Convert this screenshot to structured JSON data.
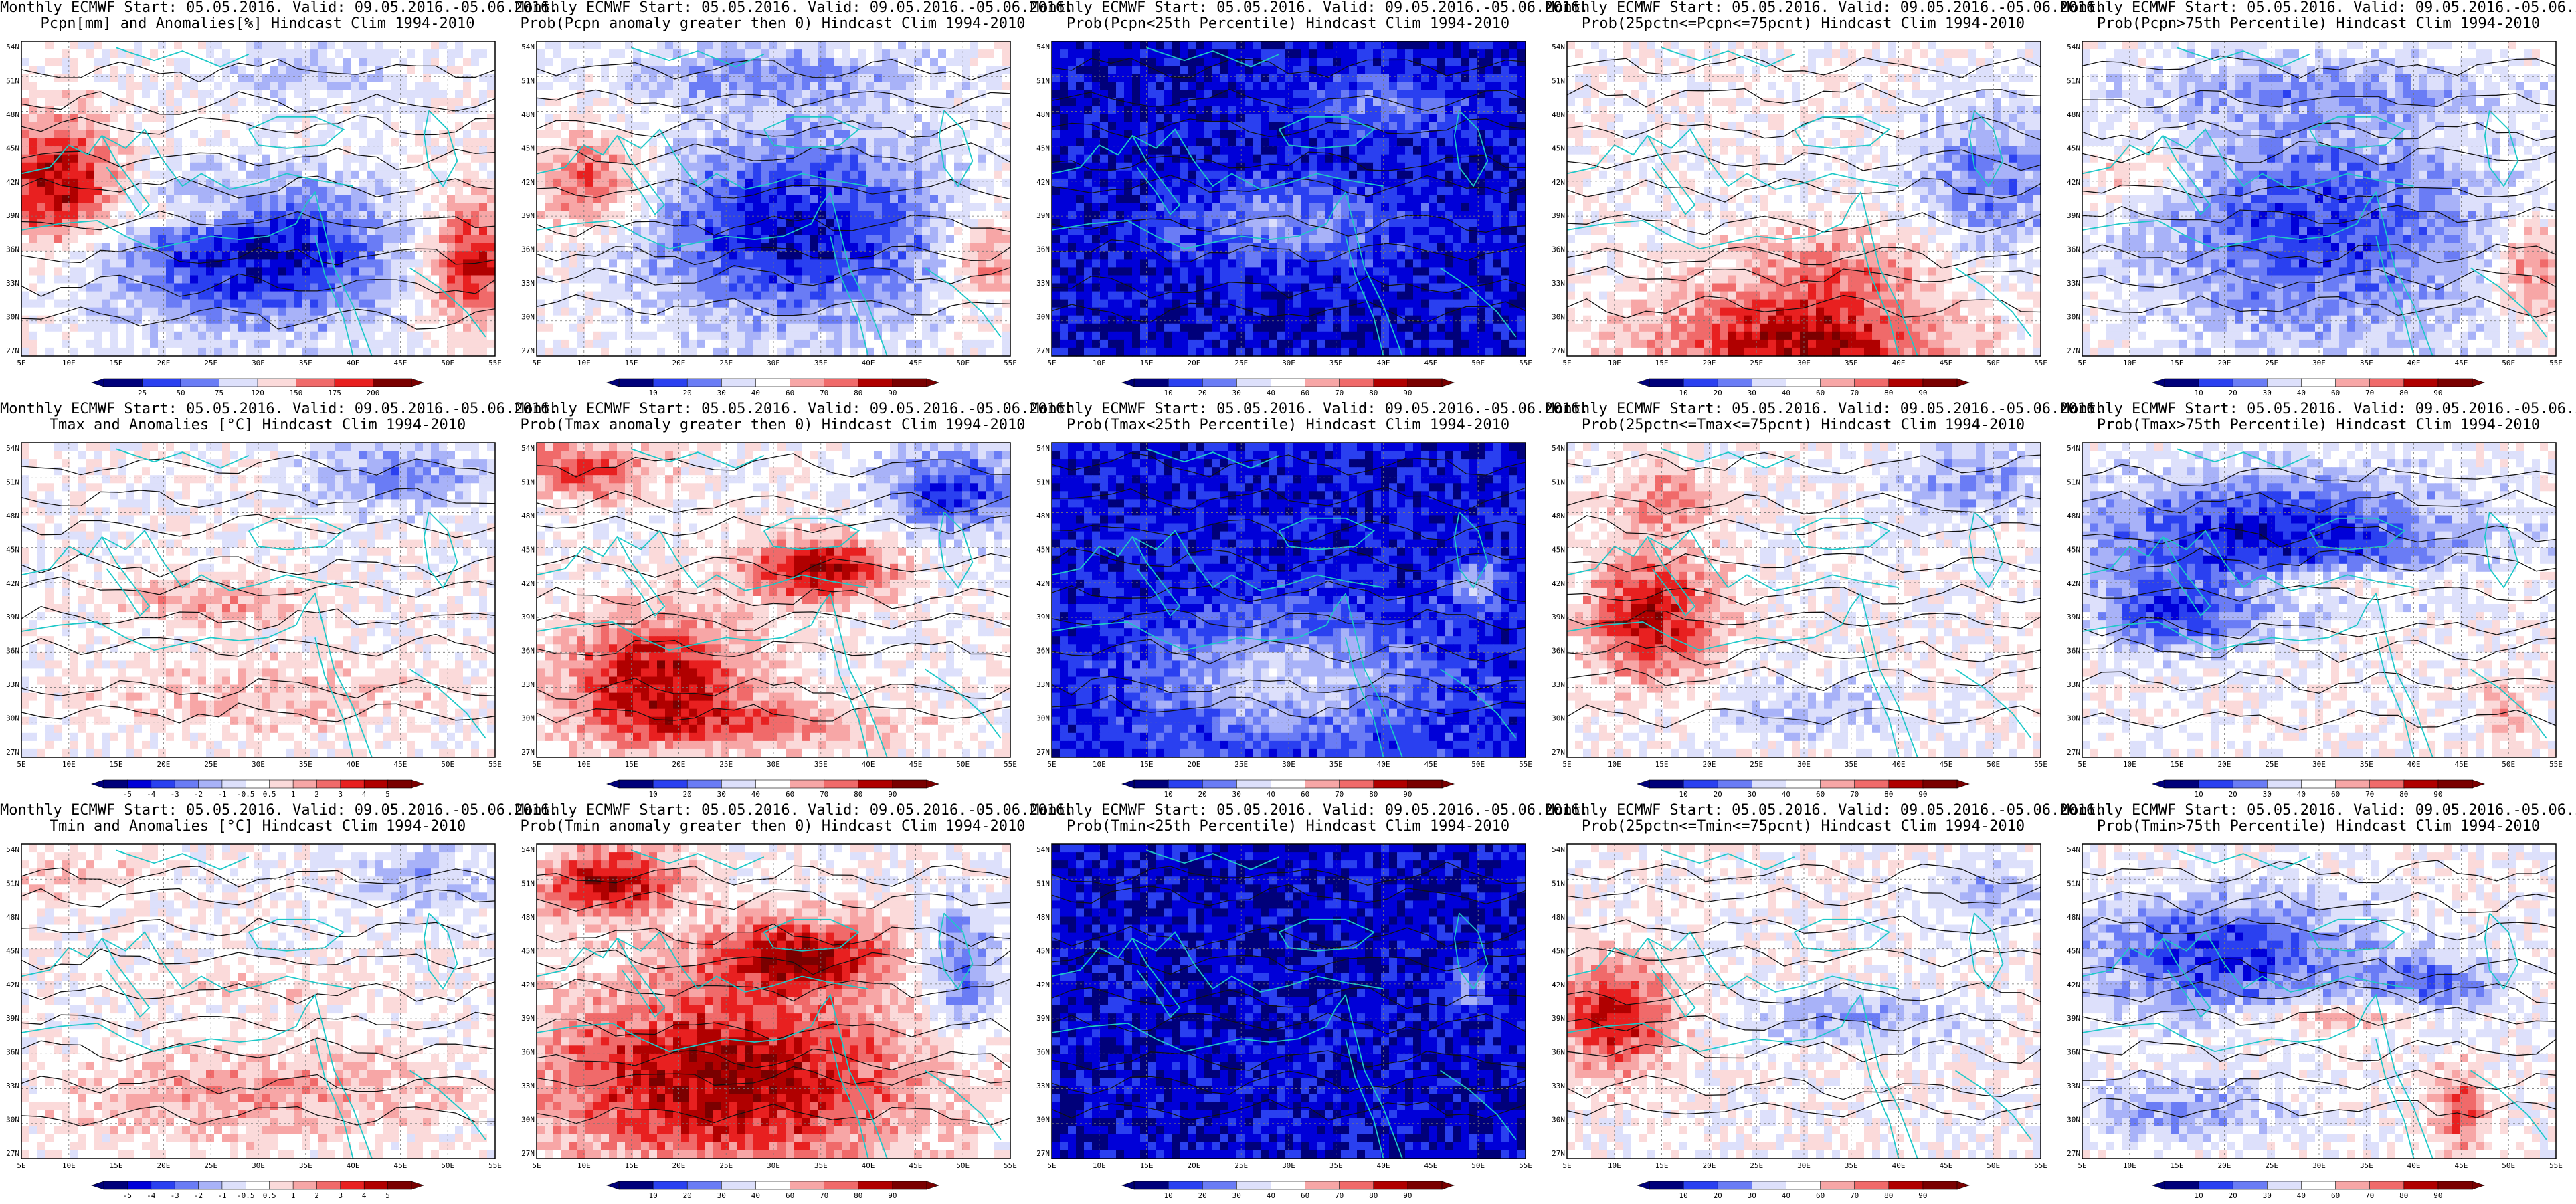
{
  "header": {
    "line1": "Monthly ECMWF Start: 05.05.2016. Valid: 09.05.2016.-05.06.2016."
  },
  "map": {
    "lat_labels": [
      "54N",
      "51N",
      "48N",
      "45N",
      "42N",
      "39N",
      "36N",
      "33N",
      "30N",
      "27N"
    ],
    "lon_labels": [
      "5E",
      "10E",
      "15E",
      "20E",
      "25E",
      "30E",
      "35E",
      "40E",
      "45E",
      "50E",
      "55E"
    ]
  },
  "colorbars": {
    "precip_anom": [
      "25",
      "50",
      "75",
      "120",
      "150",
      "175",
      "200"
    ],
    "prob": [
      "10",
      "20",
      "30",
      "40",
      "60",
      "70",
      "80",
      "90"
    ],
    "temp_anom": [
      "-5",
      "-4",
      "-3",
      "-2",
      "-1",
      "-0.5",
      "0.5",
      "1",
      "2",
      "3",
      "4",
      "5"
    ]
  },
  "palettes": {
    "diverging": [
      "#00007a",
      "#0000d8",
      "#2a40f0",
      "#6a7cf5",
      "#a8b2f8",
      "#dde0fb",
      "#ffffff",
      "#fbdada",
      "#f7a6a6",
      "#f06a6a",
      "#e82020",
      "#b00000",
      "#7a0000"
    ]
  },
  "panels": [
    {
      "title": "Pcpn[mm] and Anomalies[%] Hindcast Clim 1994-2010",
      "colorbar": "precip_anom",
      "pattern": "pcpn_anom"
    },
    {
      "title": "Prob(Pcpn anomaly greater then 0) Hindcast Clim 1994-2010",
      "colorbar": "prob",
      "pattern": "pcpn_prob_pos"
    },
    {
      "title": "Prob(Pcpn<25th Percentile) Hindcast Clim 1994-2010",
      "colorbar": "prob",
      "pattern": "pcpn_low"
    },
    {
      "title": "Prob(25pctn<=Pcpn<=75pcnt) Hindcast Clim 1994-2010",
      "colorbar": "prob",
      "pattern": "pcpn_mid"
    },
    {
      "title": "Prob(Pcpn>75th Percentile) Hindcast Clim 1994-2010",
      "colorbar": "prob",
      "pattern": "pcpn_high"
    },
    {
      "title": "Tmax and Anomalies [°C] Hindcast Clim 1994-2010",
      "colorbar": "temp_anom",
      "pattern": "tmax_anom"
    },
    {
      "title": "Prob(Tmax anomaly greater then 0) Hindcast Clim 1994-2010",
      "colorbar": "prob",
      "pattern": "tmax_prob_pos"
    },
    {
      "title": "Prob(Tmax<25th Percentile) Hindcast Clim 1994-2010",
      "colorbar": "prob",
      "pattern": "tmax_low"
    },
    {
      "title": "Prob(25pctn<=Tmax<=75pcnt) Hindcast Clim 1994-2010",
      "colorbar": "prob",
      "pattern": "tmax_mid"
    },
    {
      "title": "Prob(Tmax>75th Percentile) Hindcast Clim 1994-2010",
      "colorbar": "prob",
      "pattern": "tmax_high"
    },
    {
      "title": "Tmin and Anomalies [°C] Hindcast Clim 1994-2010",
      "colorbar": "temp_anom",
      "pattern": "tmin_anom"
    },
    {
      "title": "Prob(Tmin anomaly greater then 0) Hindcast Clim 1994-2010",
      "colorbar": "prob",
      "pattern": "tmin_prob_pos"
    },
    {
      "title": "Prob(Tmin<25th Percentile) Hindcast Clim 1994-2010",
      "colorbar": "prob",
      "pattern": "tmin_low"
    },
    {
      "title": "Prob(25pctn<=Tmin<=75pcnt) Hindcast Clim 1994-2010",
      "colorbar": "prob",
      "pattern": "tmin_mid"
    },
    {
      "title": "Prob(Tmin>75th Percentile) Hindcast Clim 1994-2010",
      "colorbar": "prob",
      "pattern": "tmin_high"
    }
  ]
}
